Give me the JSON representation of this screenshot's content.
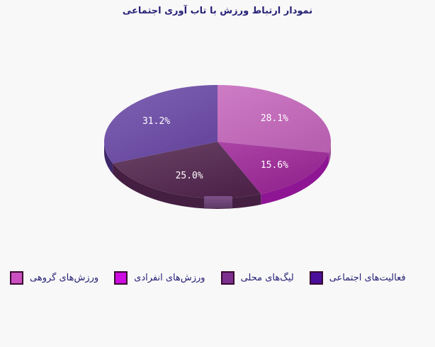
{
  "chart_data": {
    "type": "pie",
    "style": "3d",
    "title": "نمودار ارتباط ورزش با تاب آوری اجتماعی",
    "legend_position": "bottom",
    "labels_on_slices": true,
    "start_angle_deg": 0,
    "direction": "clockwise",
    "background_color": "#f8f8f8",
    "title_color": "#272277",
    "legend_text_color": "#272277",
    "slice_label_color": "#ffffff",
    "swatch_border_color": "#38092f",
    "slices": [
      {
        "label": "ورزش‌های گروهی",
        "value": 28.1,
        "display": "28.1%",
        "legend_color": "#cb4fc0",
        "top_color": "#c667bd",
        "side_color": "#a04c9a"
      },
      {
        "label": "ورزش‌های انفرادی",
        "value": 15.6,
        "display": "15.6%",
        "legend_color": "#cc0ce0",
        "top_color": "#9d2698",
        "side_color": "#8e1694"
      },
      {
        "label": "لیگ‌های محلی",
        "value": 25.0,
        "display": "25.0%",
        "legend_color": "#7d2f90",
        "top_color": "#53264f",
        "side_color": "#451f42"
      },
      {
        "label": "فعالیت‌های اجتماعی",
        "value": 31.2,
        "display": "31.2%",
        "legend_color": "#4a0e9b",
        "top_color": "#6b4aa8",
        "side_color": "#3d2768"
      }
    ],
    "tab_top_color": "#7e5289",
    "tab_bottom_color": "#5d3a66"
  }
}
